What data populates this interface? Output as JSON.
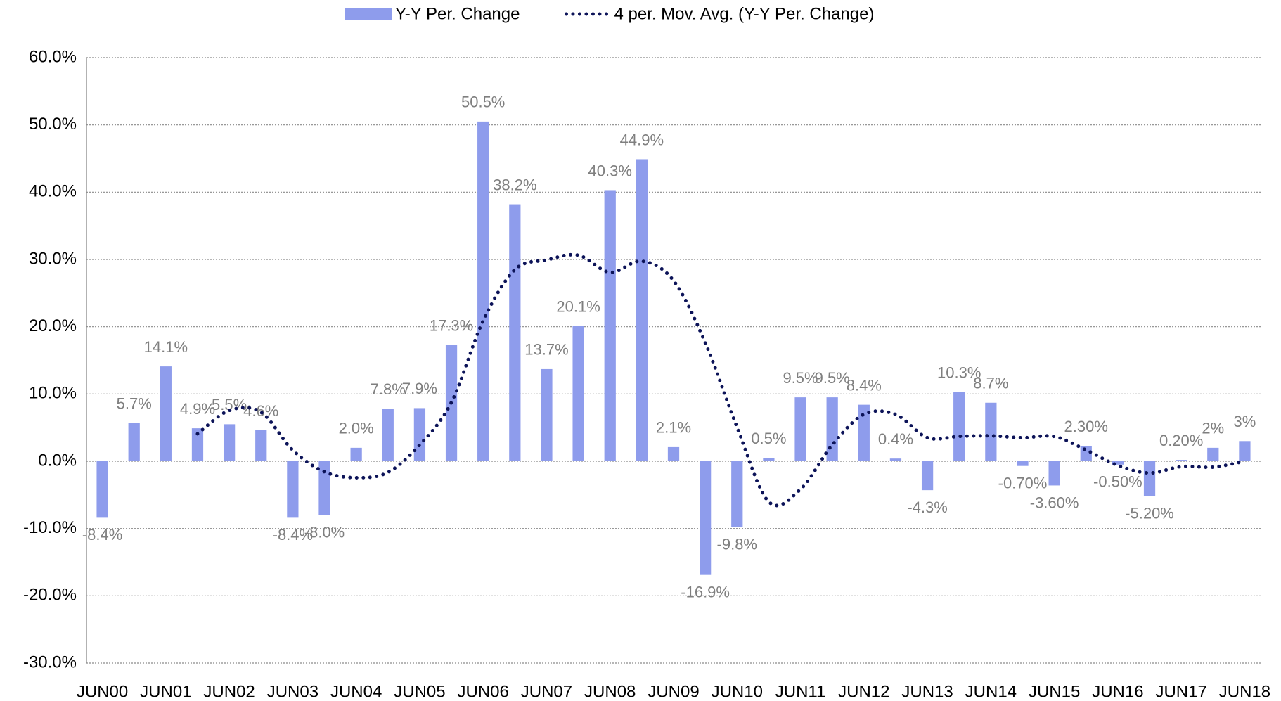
{
  "chart_data": {
    "type": "bar",
    "categories": [
      "JUN00",
      null,
      "JUN01",
      null,
      "JUN02",
      null,
      "JUN03",
      null,
      "JUN04",
      null,
      "JUN05",
      null,
      "JUN06",
      null,
      "JUN07",
      null,
      "JUN08",
      null,
      "JUN09",
      null,
      "JUN10",
      null,
      "JUN11",
      null,
      "JUN12",
      null,
      "JUN13",
      null,
      "JUN14",
      null,
      "JUN15",
      null,
      "JUN16",
      null,
      "JUN17",
      null,
      "JUN18"
    ],
    "series": [
      {
        "name": "Y-Y Per. Change",
        "type": "bar",
        "color": "#8e9cec",
        "values": [
          -8.4,
          5.7,
          14.1,
          4.9,
          5.5,
          4.6,
          -8.4,
          -8.0,
          2.0,
          7.8,
          7.9,
          17.3,
          50.5,
          38.2,
          13.7,
          20.1,
          40.3,
          44.9,
          2.1,
          -16.9,
          -9.8,
          0.5,
          9.5,
          9.5,
          8.4,
          0.4,
          -4.3,
          10.3,
          8.7,
          -0.7,
          -3.6,
          2.3,
          -0.5,
          -5.2,
          0.2,
          2,
          3
        ],
        "value_labels": [
          "-8.4%",
          "5.7%",
          "14.1%",
          "4.9%",
          "5.5%",
          "4.6%",
          "-8.4%",
          "-8.0%",
          "2.0%",
          "7.8%",
          "7.9%",
          "17.3%",
          "50.5%",
          "38.2%",
          "13.7%",
          "20.1%",
          "40.3%",
          "44.9%",
          "2.1%",
          "-16.9%",
          "-9.8%",
          "0.5%",
          "9.5%",
          "9.5%",
          "8.4%",
          "0.4%",
          "-4.3%",
          "10.3%",
          "8.7%",
          "-0.70%",
          "-3.60%",
          "2.30%",
          "-0.50%",
          "-5.20%",
          "0.20%",
          "2%",
          "3%"
        ]
      },
      {
        "name": "4 per. Mov. Avg. (Y-Y Per. Change)",
        "type": "line",
        "color": "#0c1358",
        "values": [
          null,
          null,
          null,
          4.075,
          7.55,
          7.275,
          1.65,
          -1.575,
          -2.45,
          -1.65,
          2.425,
          8.75,
          20.875,
          28.475,
          29.925,
          30.625,
          28.075,
          29.75,
          26.85,
          17.6,
          5.075,
          -6.025,
          -4.175,
          2.425,
          6.975,
          6.95,
          3.5,
          3.7,
          3.775,
          3.5,
          3.675,
          1.675,
          -0.625,
          -1.75,
          -0.8,
          -0.875,
          0
        ]
      }
    ],
    "ylim": [
      -30,
      60
    ],
    "yticks": [
      {
        "value": -30,
        "label": "-30.0%"
      },
      {
        "value": -20,
        "label": "-20.0%"
      },
      {
        "value": -10,
        "label": "-10.0%"
      },
      {
        "value": 0,
        "label": "0.0%"
      },
      {
        "value": 10,
        "label": "10.0%"
      },
      {
        "value": 20,
        "label": "20.0%"
      },
      {
        "value": 30,
        "label": "30.0%"
      },
      {
        "value": 40,
        "label": "40.0%"
      },
      {
        "value": 50,
        "label": "50.0%"
      },
      {
        "value": 60,
        "label": "60.0%"
      }
    ],
    "grid": true,
    "legend": "top"
  }
}
